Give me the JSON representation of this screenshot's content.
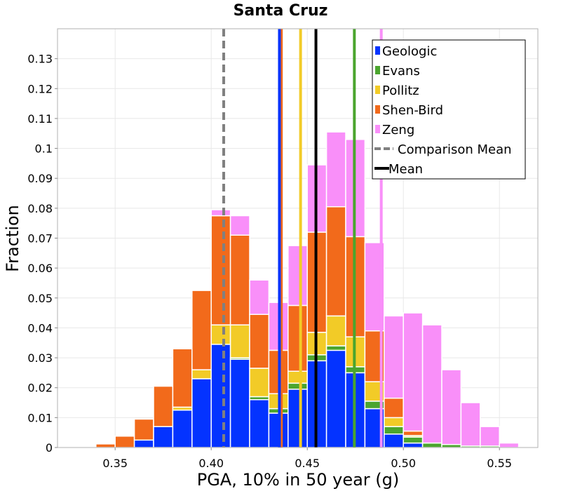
{
  "chart_data": {
    "type": "bar",
    "stacked": true,
    "title": "Santa Cruz",
    "xlabel": "PGA, 10% in 50 year (g)",
    "ylabel": "Fraction",
    "xlim": [
      0.32,
      0.57
    ],
    "ylim": [
      0,
      0.14
    ],
    "grid": true,
    "bin_width": 0.01,
    "x_ticks": [
      0.35,
      0.4,
      0.45,
      0.5,
      0.55
    ],
    "x_tick_labels": [
      "0.35",
      "0.40",
      "0.45",
      "0.50",
      "0.55"
    ],
    "y_ticks": [
      0,
      0.01,
      0.02,
      0.03,
      0.04,
      0.05,
      0.06,
      0.07,
      0.08,
      0.09,
      0.1,
      0.11,
      0.12,
      0.13
    ],
    "y_tick_labels": [
      "0",
      "0.01",
      "0.02",
      "0.03",
      "0.04",
      "0.05",
      "0.06",
      "0.07",
      "0.08",
      "0.09",
      "0.1",
      "0.11",
      "0.12",
      "0.13"
    ],
    "bin_centers": [
      0.335,
      0.345,
      0.355,
      0.365,
      0.375,
      0.385,
      0.395,
      0.405,
      0.415,
      0.425,
      0.435,
      0.445,
      0.455,
      0.465,
      0.475,
      0.485,
      0.495,
      0.505,
      0.515,
      0.525,
      0.535,
      0.545,
      0.555,
      0.565
    ],
    "series": [
      {
        "name": "Geologic",
        "color": "#0433ff",
        "values": [
          0,
          0,
          0,
          0.0025,
          0.007,
          0.0125,
          0.023,
          0.0345,
          0.0295,
          0.016,
          0.0115,
          0.0195,
          0.029,
          0.0325,
          0.025,
          0.013,
          0.0045,
          0.0015,
          0,
          0,
          0,
          0,
          0,
          0
        ]
      },
      {
        "name": "Evans",
        "color": "#4ba52e",
        "values": [
          0,
          0,
          0,
          0,
          0,
          0,
          0,
          0,
          0.0005,
          0.001,
          0.0015,
          0.002,
          0.002,
          0.0015,
          0.002,
          0.0025,
          0.0025,
          0.002,
          0.0015,
          0.001,
          0.0005,
          0.0005,
          0,
          0
        ]
      },
      {
        "name": "Pollitz",
        "color": "#f2cb27",
        "values": [
          0,
          0,
          0,
          0,
          0,
          0.001,
          0.003,
          0.0065,
          0.011,
          0.0095,
          0.005,
          0.004,
          0.0075,
          0.01,
          0.01,
          0.0065,
          0.003,
          0.0005,
          0,
          0,
          0,
          0,
          0,
          0
        ]
      },
      {
        "name": "Shen-Bird",
        "color": "#f26a1b",
        "values": [
          0,
          0.0012,
          0.0038,
          0.007,
          0.0135,
          0.0195,
          0.0265,
          0.0365,
          0.03,
          0.018,
          0.0145,
          0.022,
          0.0335,
          0.0365,
          0.0335,
          0.017,
          0.0065,
          0.0015,
          0,
          0,
          0,
          0,
          0,
          0
        ]
      },
      {
        "name": "Zeng",
        "color": "#f98ff9",
        "values": [
          0.0003,
          0,
          0,
          0,
          0,
          0,
          0,
          0.002,
          0.0065,
          0.0115,
          0.016,
          0.02,
          0.0225,
          0.025,
          0.0325,
          0.0295,
          0.0275,
          0.0395,
          0.0395,
          0.025,
          0.0145,
          0.0065,
          0.0015,
          0.0003
        ]
      }
    ],
    "vertical_lines": [
      {
        "name": "Zeng",
        "x": 0.4885,
        "color": "#f98ff9",
        "style": "solid"
      },
      {
        "name": "Evans",
        "x": 0.4745,
        "color": "#4ba52e",
        "style": "solid"
      },
      {
        "name": "Pollitz",
        "x": 0.4465,
        "color": "#f2cb27",
        "style": "solid"
      },
      {
        "name": "Shen-Bird",
        "x": 0.4365,
        "color": "#f26a1b",
        "style": "solid"
      },
      {
        "name": "Geologic",
        "x": 0.4355,
        "color": "#0433ff",
        "style": "solid"
      },
      {
        "name": "Comparison Mean",
        "x": 0.4065,
        "color": "#808080",
        "style": "dashed"
      },
      {
        "name": "Mean",
        "x": 0.4545,
        "color": "#000000",
        "style": "solid"
      }
    ],
    "legend": {
      "position": "top-right",
      "entries": [
        {
          "label": "Geologic",
          "color": "#0433ff",
          "kind": "patch"
        },
        {
          "label": "Evans",
          "color": "#4ba52e",
          "kind": "patch"
        },
        {
          "label": "Pollitz",
          "color": "#f2cb27",
          "kind": "patch"
        },
        {
          "label": "Shen-Bird",
          "color": "#f26a1b",
          "kind": "patch"
        },
        {
          "label": "Zeng",
          "color": "#f98ff9",
          "kind": "patch"
        },
        {
          "label": "Comparison Mean",
          "color": "#808080",
          "kind": "dashed-line"
        },
        {
          "label": "Mean",
          "color": "#000000",
          "kind": "line"
        }
      ]
    }
  }
}
